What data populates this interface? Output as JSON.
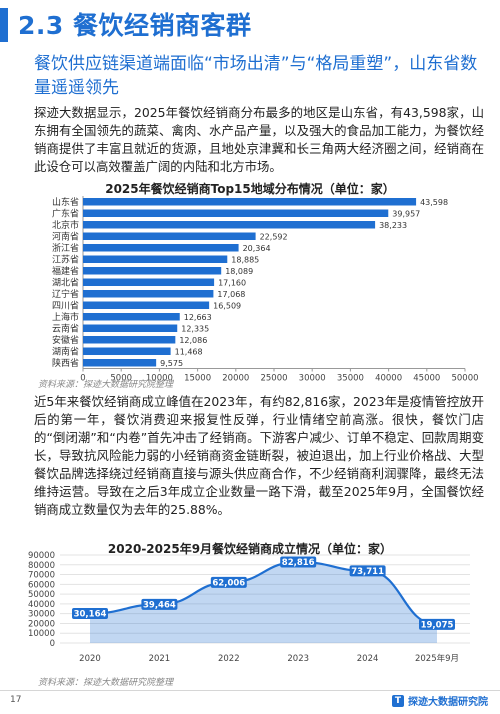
{
  "header": {
    "title": "2.3 餐饮经销商客群",
    "subtitle": "餐饮供应链渠道端面临“市场出清”与“格局重塑”，山东省数量遥遥领先"
  },
  "paragraph1": "探迹大数据显示，2025年餐饮经销商分布最多的地区是山东省，有43,598家，山东拥有全国领先的蔬菜、禽肉、水产品产量，以及强大的食品加工能力，为餐饮经销商提供了丰富且就近的货源，且地处京津冀和长三角两大经济圈之间，经销商在此设仓可以高效覆盖广阔的内陆和北方市场。",
  "paragraph2": "近5年来餐饮经销商成立峰值在2023年，有约82,816家，2023年是疫情管控放开后的第一年，餐饮消费迎来报复性反弹，行业情绪空前高涨。很快，餐饮门店的“倒闭潮”和“内卷”首先冲击了经销商。下游客户减少、订单不稳定、回款周期变长，导致抗风险能力弱的小经销商资金链断裂，被迫退出，加上行业价格战、大型餐饮品牌选择绕过经销商直接与源头供应商合作，不少经销商利润骤降，最终无法维持运营。导致在之后3年成立企业数量一路下滑，截至2025年9月，全国餐饮经销商成立数量仅为去年的25.88%。",
  "source1": "资料来源：探迹大数据研究院整理",
  "source2": "资料来源：探迹大数据研究院整理",
  "footer": {
    "page_number": "17",
    "brand": "探迹大数据研究院",
    "brand_icon": "T"
  },
  "colors": {
    "accent": "#1f6fd1",
    "bar": "#1f6fd1",
    "area": "#1f6fd1"
  },
  "chart_data": [
    {
      "type": "bar",
      "orientation": "horizontal",
      "title": "2025年餐饮经销商Top15地域分布情况（单位：家）",
      "categories": [
        "山东省",
        "广东省",
        "北京市",
        "河南省",
        "浙江省",
        "江苏省",
        "福建省",
        "湖北省",
        "辽宁省",
        "四川省",
        "上海市",
        "云南省",
        "安徽省",
        "湖南省",
        "陕西省"
      ],
      "values": [
        43598,
        39957,
        38233,
        22592,
        20364,
        18885,
        18089,
        17160,
        17068,
        16509,
        12663,
        12335,
        12086,
        11468,
        9575
      ],
      "value_labels": [
        "43,598",
        "39,957",
        "38,233",
        "22,592",
        "20,364",
        "18,885",
        "18,089",
        "17,160",
        "17,068",
        "16,509",
        "12,663",
        "12,335",
        "12,086",
        "11,468",
        "9,575"
      ],
      "xlim": [
        0,
        50000
      ],
      "xticks": [
        "0",
        "5000",
        "10000",
        "15000",
        "20000",
        "25000",
        "30000",
        "35000",
        "40000",
        "45000",
        "50000"
      ],
      "grid": false
    },
    {
      "type": "area",
      "title": "2020-2025年9月餐饮经销商成立情况（单位：家）",
      "categories": [
        "2020",
        "2021",
        "2022",
        "2023",
        "2024",
        "2025年9月"
      ],
      "values": [
        30164,
        39464,
        62006,
        82816,
        73711,
        19075
      ],
      "value_labels": [
        "30,164",
        "39,464",
        "62,006",
        "82,816",
        "73,711",
        "19,075"
      ],
      "ylim": [
        0,
        90000
      ],
      "yticks": [
        "0",
        "10000",
        "20000",
        "30000",
        "40000",
        "50000",
        "60000",
        "70000",
        "80000",
        "90000"
      ],
      "grid": true
    }
  ]
}
